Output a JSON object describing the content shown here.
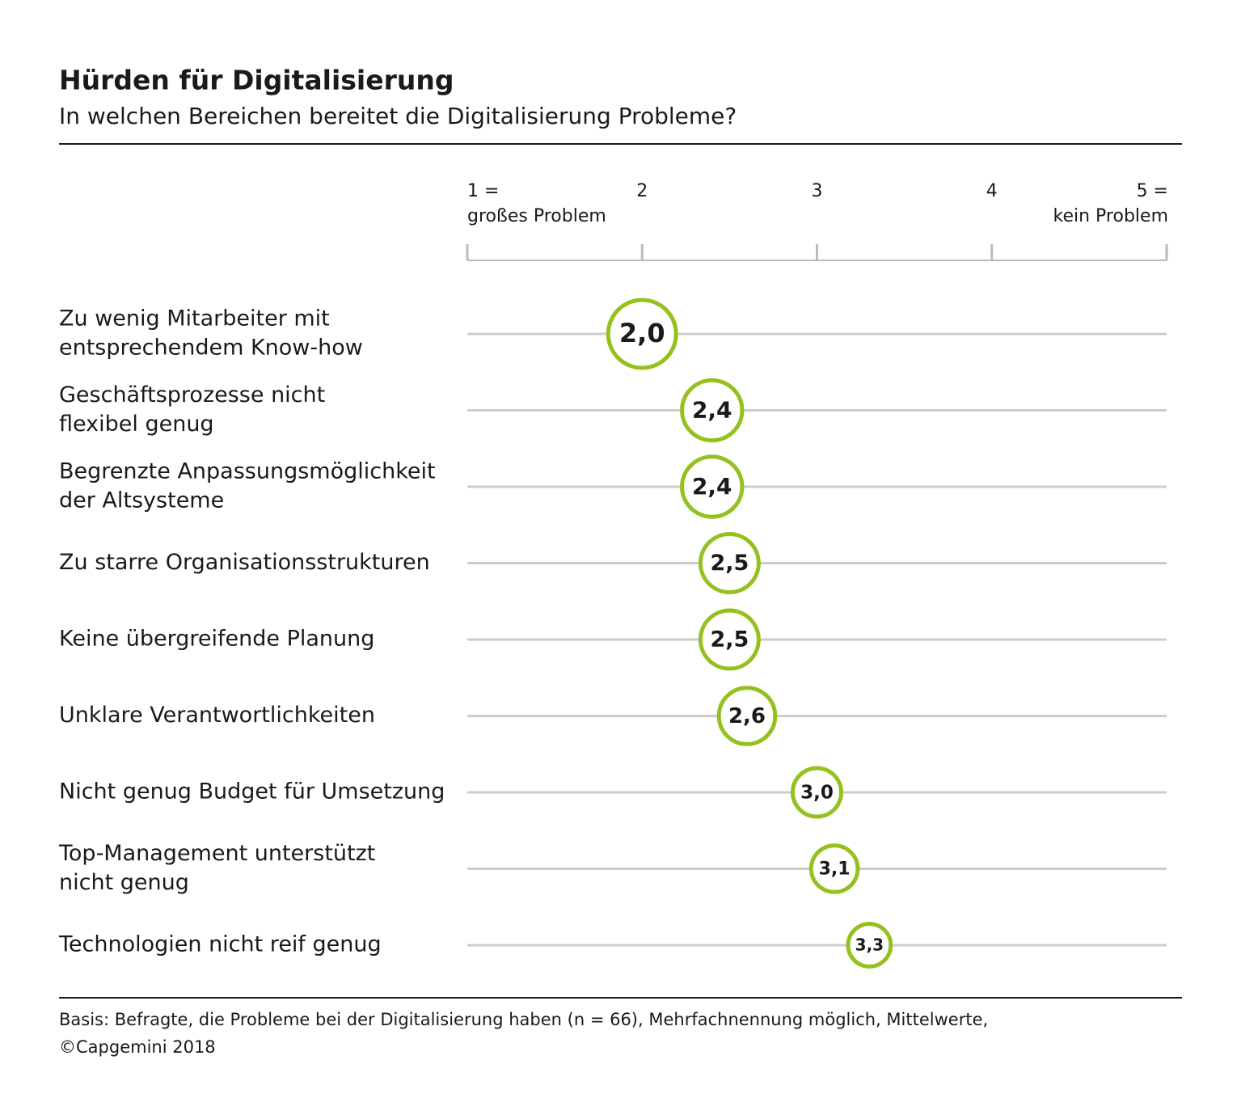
{
  "chart_data": {
    "type": "dot",
    "title": "Hürden für Digitalisierung",
    "subtitle": "In welchen Bereichen bereitet die Digitalisierung Probleme?",
    "categories": [
      [
        "Zu wenig Mitarbeiter mit",
        "entsprechendem Know-how"
      ],
      [
        "Geschäftsprozesse nicht",
        "flexibel genug"
      ],
      [
        "Begrenzte Anpassungsmöglichkeit",
        "der Altsysteme"
      ],
      [
        "Zu starre Organisationsstrukturen"
      ],
      [
        "Keine übergreifende Planung"
      ],
      [
        "Unklare Verantwortlichkeiten"
      ],
      [
        "Nicht genug Budget für Umsetzung"
      ],
      [
        "Top-Management unterstützt",
        "nicht genug"
      ],
      [
        "Technologien nicht reif genug"
      ]
    ],
    "values": [
      2.0,
      2.4,
      2.4,
      2.5,
      2.5,
      2.6,
      3.0,
      3.1,
      3.3
    ],
    "value_labels": [
      "2,0",
      "2,4",
      "2,4",
      "2,5",
      "2,5",
      "2,6",
      "3,0",
      "3,1",
      "3,3"
    ],
    "color": "#95c11f",
    "xlim": [
      1,
      5
    ],
    "xticks": [
      {
        "value": 1,
        "label": [
          "1 =",
          "großes Problem"
        ]
      },
      2,
      3,
      4,
      {
        "value": 5,
        "label": [
          "5 =",
          "kein Problem"
        ]
      }
    ],
    "source": [
      "Basis: Befragte, die Probleme bei der Digitalisierung haben (n = 66), Mehrfachnennung möglich, Mittelwerte,",
      "©Capgemini 2018"
    ]
  }
}
